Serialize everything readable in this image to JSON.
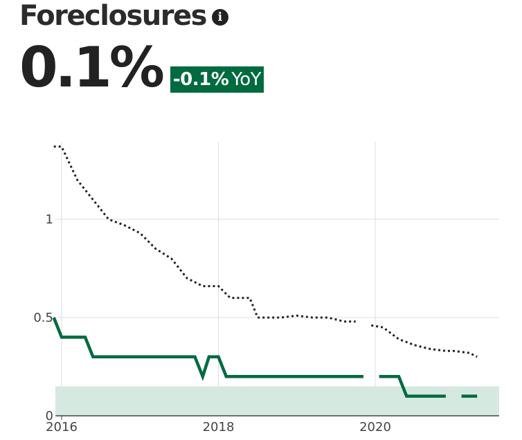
{
  "header": {
    "title": "Foreclosures",
    "value": "0.1%",
    "change": "-0.1%",
    "change_unit": "YoY",
    "info_icon": "info-icon"
  },
  "colors": {
    "accent": "#006b3f",
    "band": "#d6e9e0",
    "grid": "#dddddd",
    "dotted": "#222222"
  },
  "chart_data": {
    "type": "line",
    "x_ticks": [
      2016,
      2018,
      2020
    ],
    "y_ticks": [
      0,
      0.5,
      1
    ],
    "y_tick_labels": [
      "0",
      "0.5",
      "1"
    ],
    "xlim": [
      2015.9,
      2021.6
    ],
    "ylim": [
      0,
      1.4
    ],
    "grid": true,
    "band": {
      "from": 0,
      "to": 0.15
    },
    "series": [
      {
        "style": "dotted",
        "color": "#222222",
        "segments": [
          [
            [
              2015.9,
              1.37
            ],
            [
              2016.0,
              1.37
            ],
            [
              2016.2,
              1.2
            ],
            [
              2016.4,
              1.1
            ],
            [
              2016.6,
              1.0
            ],
            [
              2016.8,
              0.97
            ],
            [
              2017.0,
              0.93
            ],
            [
              2017.2,
              0.85
            ],
            [
              2017.4,
              0.8
            ],
            [
              2017.6,
              0.7
            ],
            [
              2017.8,
              0.66
            ],
            [
              2018.0,
              0.66
            ],
            [
              2018.15,
              0.6
            ],
            [
              2018.4,
              0.6
            ],
            [
              2018.5,
              0.5
            ],
            [
              2018.8,
              0.5
            ],
            [
              2019.0,
              0.51
            ],
            [
              2019.2,
              0.5
            ],
            [
              2019.4,
              0.5
            ],
            [
              2019.6,
              0.48
            ],
            [
              2019.75,
              0.48
            ]
          ],
          [
            [
              2019.95,
              0.46
            ],
            [
              2020.1,
              0.45
            ],
            [
              2020.3,
              0.39
            ],
            [
              2020.5,
              0.36
            ],
            [
              2020.7,
              0.34
            ],
            [
              2020.9,
              0.33
            ],
            [
              2021.0,
              0.33
            ],
            [
              2021.2,
              0.32
            ],
            [
              2021.3,
              0.3
            ]
          ]
        ]
      },
      {
        "style": "solid",
        "color": "#006b3f",
        "segments": [
          [
            [
              2015.9,
              0.5
            ],
            [
              2016.0,
              0.4
            ],
            [
              2016.3,
              0.4
            ],
            [
              2016.4,
              0.3
            ],
            [
              2017.7,
              0.3
            ],
            [
              2017.8,
              0.2
            ],
            [
              2017.88,
              0.3
            ],
            [
              2018.0,
              0.3
            ],
            [
              2018.1,
              0.2
            ],
            [
              2019.85,
              0.2
            ]
          ],
          [
            [
              2020.05,
              0.2
            ],
            [
              2020.3,
              0.2
            ],
            [
              2020.4,
              0.1
            ],
            [
              2020.9,
              0.1
            ]
          ],
          [
            [
              2021.1,
              0.1
            ],
            [
              2021.3,
              0.1
            ]
          ]
        ]
      }
    ]
  }
}
